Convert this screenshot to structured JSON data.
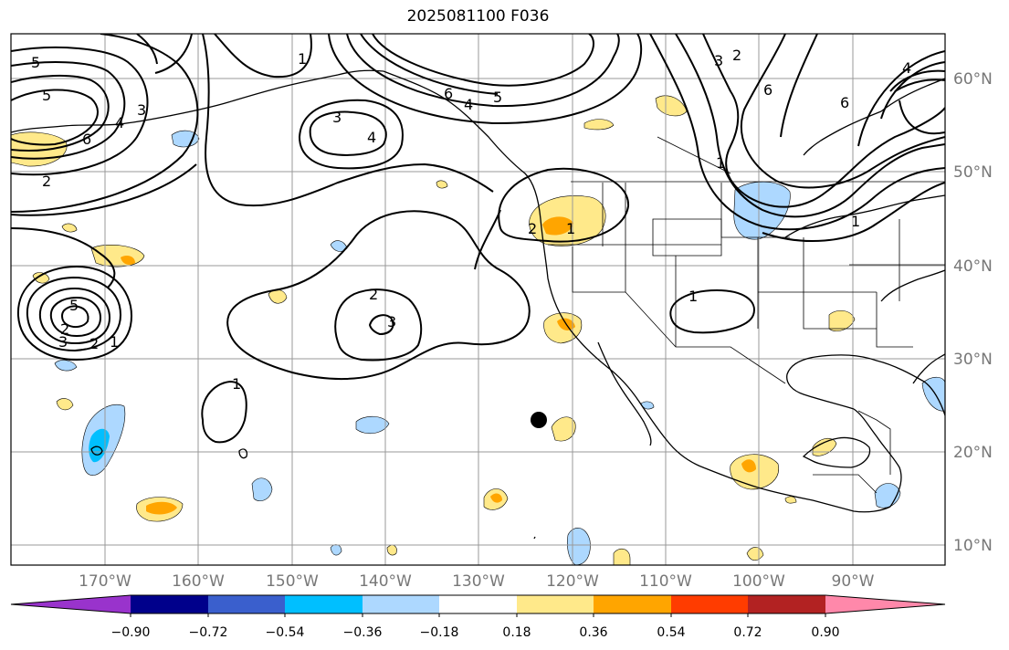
{
  "title": "2025081100 F036",
  "latitude_labels": [
    "60°N",
    "50°N",
    "40°N",
    "30°N",
    "20°N",
    "10°N"
  ],
  "longitude_labels": [
    "170°W",
    "160°W",
    "150°W",
    "140°W",
    "130°W",
    "120°W",
    "110°W",
    "100°W",
    "90°W"
  ],
  "colorbar": {
    "ticks": [
      "−0.90",
      "−0.72",
      "−0.54",
      "−0.36",
      "−0.18",
      "0.18",
      "0.36",
      "0.54",
      "0.72",
      "0.90"
    ],
    "colors": [
      "#9933cc",
      "#00008b",
      "#3a5fcd",
      "#00bfff",
      "#add8ff",
      "#ffffff",
      "#ffe98a",
      "#ffa500",
      "#ff3c00",
      "#b22222",
      "#ff88aa"
    ]
  },
  "contour_labels": [
    "5",
    "5",
    "3",
    "4",
    "6",
    "2",
    "1",
    "3",
    "4",
    "6",
    "4",
    "5",
    "3",
    "2",
    "6",
    "1",
    "6",
    "4",
    "2",
    "1",
    "2",
    "3",
    "2",
    "1",
    "5",
    "3",
    "2",
    "1",
    "1",
    "1"
  ],
  "colors": {
    "contour": "#000000",
    "frame": "#000000",
    "grid": "#999999",
    "label": "#777777"
  }
}
